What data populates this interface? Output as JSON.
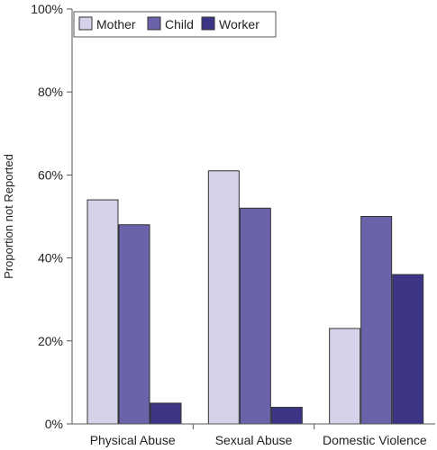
{
  "chart_data": {
    "type": "bar",
    "ylabel": "Proportion not Reported",
    "xlabel": "",
    "ylim": [
      0,
      100
    ],
    "yticks": [
      0,
      20,
      40,
      60,
      80,
      100
    ],
    "ytick_labels": [
      "0%",
      "20%",
      "40%",
      "60%",
      "80%",
      "100%"
    ],
    "categories": [
      "Physical Abuse",
      "Sexual Abuse",
      "Domestic Violence"
    ],
    "series": [
      {
        "name": "Mother",
        "values": [
          54,
          61,
          23
        ],
        "color": "#d4d3ea"
      },
      {
        "name": "Child",
        "values": [
          48,
          52,
          50
        ],
        "color": "#6a62aa"
      },
      {
        "name": "Worker",
        "values": [
          5,
          4,
          36
        ],
        "color": "#3c3585"
      }
    ],
    "legend_position": "top-left",
    "grid": false
  }
}
